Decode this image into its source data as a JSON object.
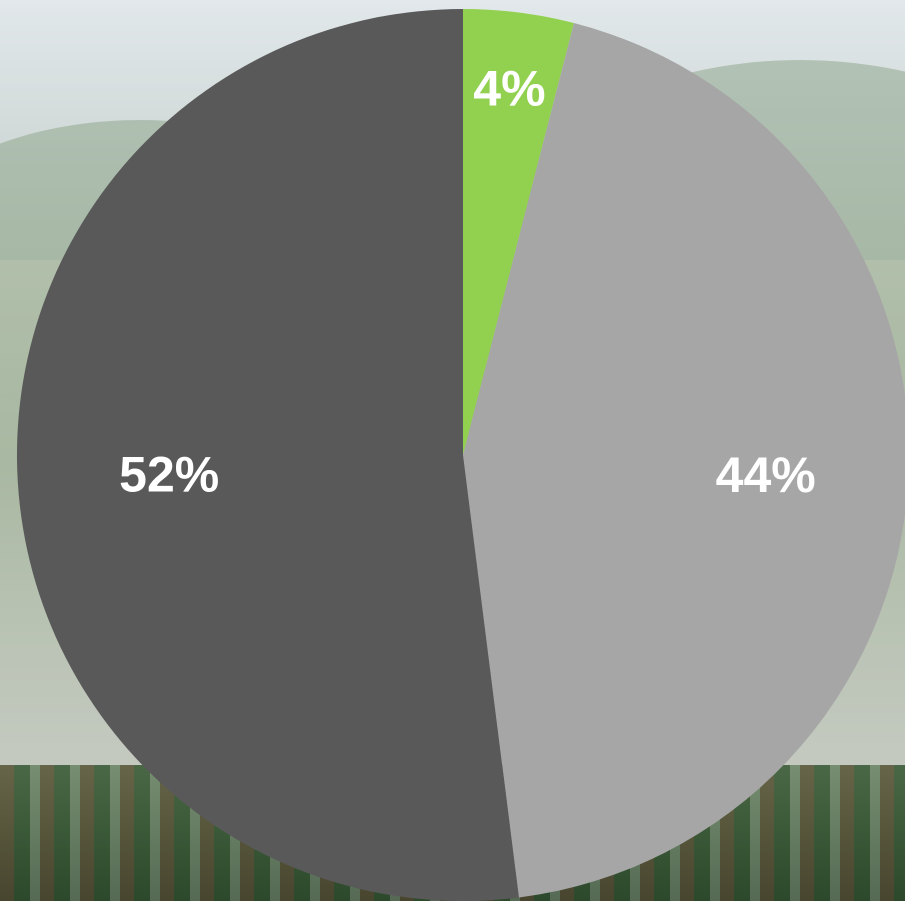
{
  "chart_data": {
    "type": "pie",
    "title": "",
    "start_angle_deg": 0,
    "direction": "clockwise",
    "slices": [
      {
        "label": "4%",
        "value": 4,
        "color": "#92d050"
      },
      {
        "label": "44%",
        "value": 44,
        "color": "#a6a6a6"
      },
      {
        "label": "52%",
        "value": 52,
        "color": "#595959"
      }
    ],
    "label_color": "#ffffff",
    "background": "landscape-photo"
  }
}
